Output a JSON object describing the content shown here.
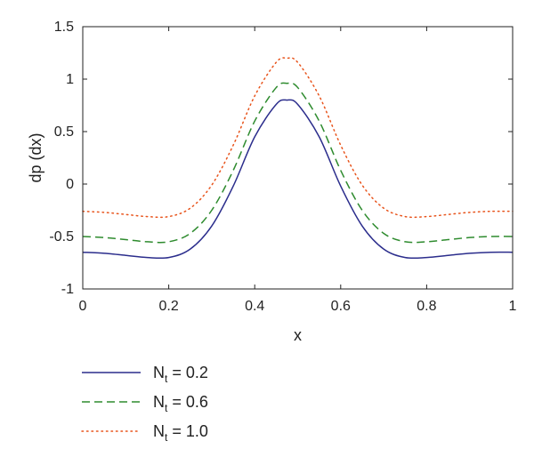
{
  "chart_data": {
    "type": "line",
    "title": "",
    "xlabel": "x",
    "ylabel": "dp (dx)",
    "xlim": [
      0,
      1
    ],
    "ylim": [
      -1,
      1.5
    ],
    "xticks": [
      "0",
      "0.2",
      "0.4",
      "0.6",
      "0.8",
      "1"
    ],
    "yticks": [
      "-1",
      "-0.5",
      "0",
      "0.5",
      "1",
      "1.5"
    ],
    "grid": false,
    "legend_position": "below",
    "x": [
      0,
      0.05,
      0.1,
      0.15,
      0.2,
      0.25,
      0.3,
      0.35,
      0.4,
      0.45,
      0.475,
      0.5,
      0.55,
      0.6,
      0.65,
      0.7,
      0.75,
      0.8,
      0.85,
      0.9,
      0.95,
      1.0
    ],
    "series": [
      {
        "legend_base": "N",
        "legend_sub": "t",
        "legend_value": " = 0.2",
        "color": "#2b2d8c",
        "dash": "solid",
        "values": [
          -0.65,
          -0.66,
          -0.68,
          -0.7,
          -0.7,
          -0.62,
          -0.4,
          -0.02,
          0.45,
          0.76,
          0.8,
          0.76,
          0.45,
          -0.02,
          -0.4,
          -0.62,
          -0.7,
          -0.7,
          -0.68,
          -0.66,
          -0.65,
          -0.65
        ]
      },
      {
        "legend_base": "N",
        "legend_sub": "t",
        "legend_value": " = 0.6",
        "color": "#2e8b2e",
        "dash": "dashed",
        "values": [
          -0.5,
          -0.51,
          -0.53,
          -0.55,
          -0.55,
          -0.47,
          -0.25,
          0.13,
          0.6,
          0.92,
          0.96,
          0.92,
          0.6,
          0.13,
          -0.25,
          -0.47,
          -0.55,
          -0.55,
          -0.53,
          -0.51,
          -0.5,
          -0.5
        ]
      },
      {
        "legend_base": "N",
        "legend_sub": "t",
        "legend_value": " = 1.0",
        "color": "#e8541c",
        "dash": "dotted",
        "values": [
          -0.26,
          -0.27,
          -0.29,
          -0.31,
          -0.31,
          -0.23,
          -0.01,
          0.37,
          0.84,
          1.16,
          1.2,
          1.16,
          0.84,
          0.37,
          -0.01,
          -0.23,
          -0.31,
          -0.31,
          -0.29,
          -0.27,
          -0.26,
          -0.26
        ]
      }
    ]
  }
}
